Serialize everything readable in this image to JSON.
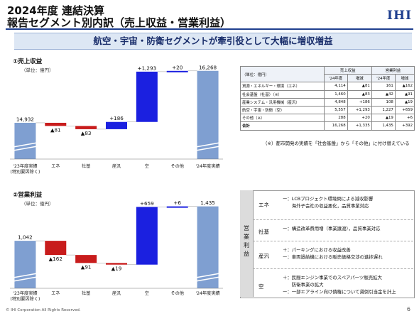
{
  "header": {
    "title_line1": "2024年度 連結決算",
    "title_line2": "報告セグメント別内訳（売上収益・営業利益）",
    "logo": "IHI",
    "headline": "航空・宇宙・防衛セグメントが牽引役として大幅に増収増益"
  },
  "colors": {
    "start_end": "#7f9fd1",
    "decrease": "#c81c1c",
    "increase": "#1b20e0",
    "accent": "#1f3f8f"
  },
  "chart_data": [
    {
      "type": "bar",
      "title": "①売上収益",
      "unit": "（単位：億円）",
      "categories": [
        "'23年度実績\n(特別要因除く)",
        "エネ",
        "社基",
        "産汎",
        "空",
        "その他",
        "'24年度実績"
      ],
      "values": [
        14932,
        -81,
        -83,
        186,
        1293,
        20,
        16268
      ],
      "labels": [
        "14,932",
        "▲81",
        "▲83",
        "+186",
        "+1,293",
        "+20",
        "16,268"
      ]
    },
    {
      "type": "bar",
      "title": "②営業利益",
      "unit": "（単位：億円）",
      "categories": [
        "'23年度実績\n(特別要因除く)",
        "エネ",
        "社基",
        "産汎",
        "空",
        "その他",
        "'24年度実績"
      ],
      "values": [
        1042,
        -162,
        -91,
        -19,
        659,
        6,
        1435
      ],
      "labels": [
        "1,042",
        "▲162",
        "▲91",
        "▲19",
        "+659",
        "+6",
        "1,435"
      ]
    }
  ],
  "table": {
    "unit_label": "（単位：億円）",
    "group_headers": [
      "売上収益",
      "営業利益"
    ],
    "sub_headers": [
      "'24年度",
      "増減",
      "'24年度",
      "増減"
    ],
    "rows": [
      {
        "name": "資源・エネルギー・環境（エネ）",
        "cells": [
          "4,114",
          "▲81",
          "161",
          "▲162"
        ]
      },
      {
        "name": "社会基盤（社基）（※）",
        "cells": [
          "1,460",
          "▲83",
          "▲42",
          "▲91"
        ]
      },
      {
        "name": "産業システム・汎用機械（産汎）",
        "cells": [
          "4,848",
          "+186",
          "108",
          "▲19"
        ]
      },
      {
        "name": "航空・宇宙・防衛（空）",
        "cells": [
          "5,557",
          "+1,293",
          "1,227",
          "+659"
        ]
      },
      {
        "name": "その他（※）",
        "cells": [
          "288",
          "+20",
          "▲19",
          "+6"
        ]
      },
      {
        "name": "合計",
        "cells": [
          "16,268",
          "+1,335",
          "1,435",
          "+392"
        ]
      }
    ],
    "note": "（※）都市開発の実績を「社会基盤」から「その他」に付け替えている"
  },
  "op_notes": {
    "tab_label": "営業利益",
    "sections": [
      {
        "label": "エネ",
        "lines": [
          "ー：LCBプロジェクト環境問による減収影響",
          "　　海外子会社の収益悪化，品質事業対応"
        ]
      },
      {
        "label": "社基",
        "lines": [
          "ー：構造改革費用増（事業譲渡），品質事業対応"
        ]
      },
      {
        "label": "産汎",
        "lines": [
          "＋：パーキングにおける収益改善",
          "ー：車両過給機における販売価格交渉の進捗遅れ"
        ]
      },
      {
        "label": "空",
        "lines": [
          "＋：民間エンジン事業でのスペアパーツ販売拡大",
          "　　防衛事業の拡大",
          "ー：一部エアライン向け債権について貸倒引当金を計上"
        ]
      }
    ]
  },
  "footer": {
    "copyright": "© IHI Corporation All Rights Reserved.",
    "page": "6"
  }
}
